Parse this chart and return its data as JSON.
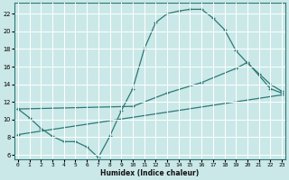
{
  "xlabel": "Humidex (Indice chaleur)",
  "bg_color": "#cbe8e8",
  "grid_color": "#ffffff",
  "line_color": "#2a7a76",
  "x_ticks": [
    0,
    1,
    2,
    3,
    4,
    5,
    6,
    7,
    8,
    9,
    10,
    11,
    12,
    13,
    14,
    15,
    16,
    17,
    18,
    19,
    20,
    21,
    22,
    23
  ],
  "y_ticks": [
    6,
    8,
    10,
    12,
    14,
    16,
    18,
    20,
    22
  ],
  "xlim": [
    -0.3,
    23.3
  ],
  "ylim": [
    5.5,
    23.2
  ],
  "line1_x": [
    0,
    1,
    2,
    3,
    4,
    5,
    6,
    7,
    8,
    9,
    10,
    11,
    12,
    13,
    14,
    15,
    16,
    17,
    18,
    19,
    20,
    21,
    22,
    23
  ],
  "line1_y": [
    11.2,
    10.2,
    9.0,
    8.1,
    7.5,
    7.5,
    6.9,
    5.7,
    8.1,
    11.0,
    13.5,
    18.0,
    21.0,
    22.0,
    22.3,
    22.5,
    22.5,
    21.5,
    20.2,
    17.8,
    16.4,
    15.2,
    14.0,
    13.2
  ],
  "line2_x": [
    0,
    10,
    13,
    16,
    19,
    20,
    22,
    23
  ],
  "line2_y": [
    11.2,
    11.5,
    13.0,
    14.2,
    15.8,
    16.5,
    13.5,
    13.0
  ],
  "line3_x": [
    0,
    23
  ],
  "line3_y": [
    8.3,
    12.8
  ]
}
